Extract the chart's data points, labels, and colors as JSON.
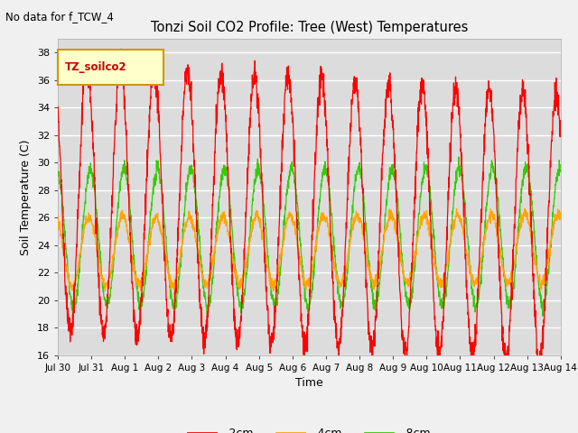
{
  "title": "Tonzi Soil CO2 Profile: Tree (West) Temperatures",
  "subtitle": "No data for f_TCW_4",
  "xlabel": "Time",
  "ylabel": "Soil Temperature (C)",
  "ylim": [
    16,
    39
  ],
  "yticks": [
    16,
    18,
    20,
    22,
    24,
    26,
    28,
    30,
    32,
    34,
    36,
    38
  ],
  "xtick_labels": [
    "Jul 30",
    "Jul 31",
    "Aug 1",
    "Aug 2",
    "Aug 3",
    "Aug 4",
    "Aug 5",
    "Aug 6",
    "Aug 7",
    "Aug 8",
    "Aug 9",
    "Aug 10",
    "Aug 11",
    "Aug 12",
    "Aug 13",
    "Aug 14"
  ],
  "line_colors": {
    "2cm": "#ff0000",
    "4cm": "#ffa500",
    "8cm": "#33cc00"
  },
  "legend_label": "TZ_soilco2",
  "legend_box_color": "#ffffcc",
  "legend_box_edge": "#cc9900",
  "fig_bg_color": "#f0f0f0",
  "plot_bg_color": "#dcdcdc",
  "grid_color": "#ffffff",
  "n_days": 15,
  "points_per_day": 144
}
